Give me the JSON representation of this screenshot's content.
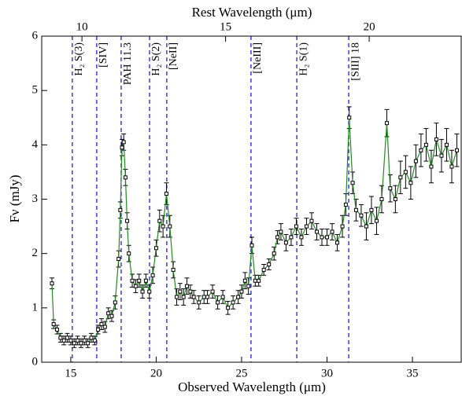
{
  "chart_data": {
    "type": "errorbar",
    "xlabel": "Observed Wavelength (μm)",
    "x2label": "Rest Wavelength (μm)",
    "ylabel": "Fν (mJy)",
    "xlim": [
      13.3,
      37.9
    ],
    "xticks": [
      15,
      20,
      25,
      30,
      35
    ],
    "x2lim": [
      8.6,
      23.23
    ],
    "x2ticks": [
      10,
      15,
      20
    ],
    "ylim": [
      0,
      6
    ],
    "yticks": [
      0,
      1,
      2,
      3,
      4,
      5,
      6
    ],
    "line_color": "#228b22",
    "marker_color": "#000000",
    "vline_color": "#1f1fdd",
    "x": [
      13.9,
      14.0,
      14.2,
      14.4,
      14.6,
      14.8,
      15.0,
      15.2,
      15.4,
      15.6,
      15.8,
      16.0,
      16.2,
      16.4,
      16.6,
      16.8,
      17.0,
      17.2,
      17.4,
      17.6,
      17.8,
      17.9,
      18.0,
      18.1,
      18.2,
      18.3,
      18.4,
      18.6,
      18.8,
      19.0,
      19.2,
      19.4,
      19.6,
      19.8,
      20.0,
      20.2,
      20.4,
      20.6,
      20.8,
      21.0,
      21.2,
      21.4,
      21.6,
      21.8,
      22.0,
      22.2,
      22.5,
      22.8,
      23.0,
      23.3,
      23.6,
      23.9,
      24.2,
      24.5,
      24.8,
      25.0,
      25.2,
      25.4,
      25.6,
      25.8,
      26.0,
      26.3,
      26.6,
      26.9,
      27.1,
      27.3,
      27.6,
      27.9,
      28.2,
      28.5,
      28.8,
      29.1,
      29.4,
      29.7,
      30.0,
      30.3,
      30.6,
      30.9,
      31.1,
      31.3,
      31.5,
      31.7,
      32.0,
      32.3,
      32.6,
      32.9,
      33.2,
      33.5,
      33.7,
      34.0,
      34.3,
      34.6,
      34.9,
      35.2,
      35.5,
      35.8,
      36.1,
      36.4,
      36.7,
      37.0,
      37.3,
      37.6
    ],
    "values": [
      1.45,
      0.7,
      0.6,
      0.45,
      0.4,
      0.45,
      0.4,
      0.35,
      0.4,
      0.35,
      0.4,
      0.35,
      0.45,
      0.4,
      0.6,
      0.7,
      0.65,
      0.9,
      0.85,
      1.1,
      1.9,
      2.8,
      3.95,
      4.05,
      3.4,
      2.6,
      2.0,
      1.5,
      1.4,
      1.5,
      1.3,
      1.5,
      1.3,
      1.6,
      2.1,
      2.6,
      2.5,
      3.1,
      2.5,
      1.7,
      1.2,
      1.3,
      1.2,
      1.4,
      1.3,
      1.2,
      1.1,
      1.2,
      1.2,
      1.3,
      1.1,
      1.2,
      1.0,
      1.1,
      1.2,
      1.3,
      1.5,
      1.4,
      2.15,
      1.5,
      1.5,
      1.7,
      1.8,
      2.0,
      2.3,
      2.4,
      2.2,
      2.3,
      2.5,
      2.3,
      2.5,
      2.6,
      2.4,
      2.3,
      2.3,
      2.4,
      2.2,
      2.5,
      2.9,
      4.5,
      3.3,
      2.8,
      2.7,
      2.5,
      2.8,
      2.6,
      3.0,
      4.4,
      3.2,
      3.0,
      3.4,
      3.5,
      3.3,
      3.7,
      3.9,
      4.0,
      3.6,
      4.1,
      3.8,
      4.0,
      3.6,
      3.9
    ],
    "errors": [
      0.1,
      0.08,
      0.08,
      0.08,
      0.08,
      0.08,
      0.08,
      0.08,
      0.08,
      0.08,
      0.08,
      0.08,
      0.08,
      0.08,
      0.08,
      0.1,
      0.1,
      0.1,
      0.1,
      0.12,
      0.15,
      0.15,
      0.15,
      0.15,
      0.15,
      0.15,
      0.15,
      0.12,
      0.12,
      0.12,
      0.12,
      0.12,
      0.12,
      0.15,
      0.15,
      0.2,
      0.2,
      0.2,
      0.2,
      0.15,
      0.15,
      0.15,
      0.15,
      0.15,
      0.12,
      0.12,
      0.12,
      0.12,
      0.12,
      0.12,
      0.12,
      0.12,
      0.12,
      0.12,
      0.12,
      0.12,
      0.15,
      0.15,
      0.15,
      0.1,
      0.1,
      0.1,
      0.1,
      0.12,
      0.12,
      0.15,
      0.15,
      0.15,
      0.15,
      0.15,
      0.15,
      0.15,
      0.15,
      0.15,
      0.15,
      0.15,
      0.15,
      0.2,
      0.2,
      0.2,
      0.2,
      0.2,
      0.2,
      0.25,
      0.25,
      0.25,
      0.25,
      0.25,
      0.25,
      0.25,
      0.3,
      0.3,
      0.3,
      0.3,
      0.3,
      0.3,
      0.3,
      0.3,
      0.3,
      0.3,
      0.3,
      0.3
    ],
    "lines": [
      {
        "x": 15.09,
        "label": "H₂ S(3)"
      },
      {
        "x": 16.52,
        "label": "[SIV]"
      },
      {
        "x": 17.95,
        "label": "PAH 11.3"
      },
      {
        "x": 19.61,
        "label": "H₂ S(2)"
      },
      {
        "x": 20.62,
        "label": "[NeII]"
      },
      {
        "x": 25.55,
        "label": "[NeIII]"
      },
      {
        "x": 28.23,
        "label": "H₂ S(1)"
      },
      {
        "x": 31.27,
        "label": "[SIII] 18"
      }
    ]
  }
}
